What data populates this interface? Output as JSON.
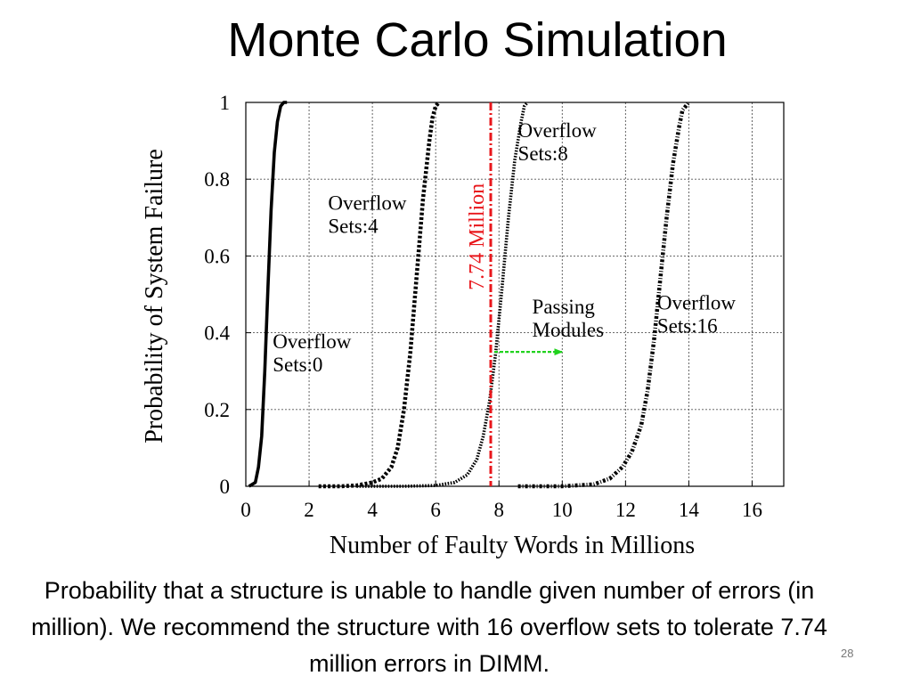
{
  "slide": {
    "title": "Monte Carlo Simulation",
    "caption": "Probability that a structure is unable to handle given number of errors (in million). We recommend the structure with 16 overflow sets to tolerate 7.74 million errors in DIMM.",
    "number": "28"
  },
  "chart_data": {
    "type": "line",
    "title": "",
    "xlabel": "Number of Faulty Words in Millions",
    "ylabel": "Probability of System Failure",
    "xlim": [
      0,
      17
    ],
    "ylim": [
      0,
      1
    ],
    "xticks": [
      0,
      2,
      4,
      6,
      8,
      10,
      12,
      14,
      16
    ],
    "yticks": [
      0,
      0.2,
      0.4,
      0.6,
      0.8,
      1
    ],
    "ytick_labels": [
      "0",
      "0.2",
      "0.4",
      "0.6",
      "0.8",
      "1"
    ],
    "grid": true,
    "series": [
      {
        "name": "Overflow Sets:0",
        "label_lines": [
          "Overflow",
          "Sets:0"
        ],
        "style": "solid",
        "x": [
          0.1,
          0.3,
          0.4,
          0.5,
          0.6,
          0.7,
          0.8,
          0.9,
          1.0,
          1.1,
          1.2,
          1.3
        ],
        "y": [
          0,
          0.01,
          0.05,
          0.13,
          0.3,
          0.52,
          0.72,
          0.87,
          0.95,
          0.99,
          1.0,
          1.0
        ]
      },
      {
        "name": "Overflow Sets:4",
        "label_lines": [
          "Overflow",
          "Sets:4"
        ],
        "style": "dashed",
        "x": [
          2.3,
          3.0,
          3.5,
          4.0,
          4.3,
          4.6,
          4.8,
          5.0,
          5.2,
          5.4,
          5.6,
          5.8,
          5.9,
          6.0,
          6.1
        ],
        "y": [
          0,
          0,
          0.002,
          0.01,
          0.02,
          0.05,
          0.1,
          0.2,
          0.35,
          0.55,
          0.75,
          0.9,
          0.96,
          0.99,
          1.0
        ]
      },
      {
        "name": "Overflow Sets:8",
        "label_lines": [
          "Overflow",
          "Sets:8"
        ],
        "style": "dotted",
        "x": [
          3.5,
          5.0,
          6.0,
          6.6,
          7.0,
          7.3,
          7.5,
          7.7,
          7.9,
          8.1,
          8.3,
          8.5,
          8.7,
          8.8,
          8.9
        ],
        "y": [
          0,
          0,
          0.002,
          0.01,
          0.03,
          0.07,
          0.13,
          0.22,
          0.35,
          0.52,
          0.7,
          0.85,
          0.95,
          0.99,
          1.0
        ]
      },
      {
        "name": "Overflow Sets:16",
        "label_lines": [
          "Overflow",
          "Sets:16"
        ],
        "style": "dashdot",
        "x": [
          8.6,
          10.0,
          11.0,
          11.5,
          11.9,
          12.2,
          12.5,
          12.7,
          12.9,
          13.1,
          13.3,
          13.5,
          13.7,
          13.8,
          13.9,
          14.0
        ],
        "y": [
          0,
          0,
          0.005,
          0.02,
          0.05,
          0.09,
          0.16,
          0.25,
          0.38,
          0.54,
          0.7,
          0.84,
          0.94,
          0.98,
          0.99,
          1.0
        ]
      }
    ],
    "annotations": {
      "threshold_label": "7.74 Million",
      "threshold_x": 7.74,
      "threshold_color": "#e8161b",
      "arrow_label_lines": [
        "Passing",
        "Modules"
      ],
      "arrow_from_x": 7.74,
      "arrow_to_x": 10.0,
      "arrow_y": 0.35,
      "arrow_color": "#21d21e"
    }
  }
}
